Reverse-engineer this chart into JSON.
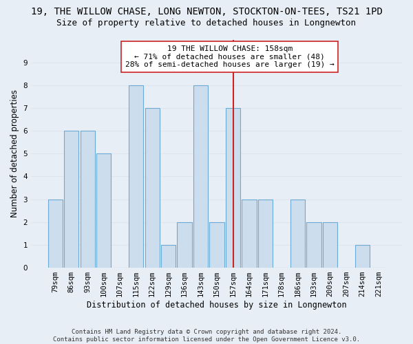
{
  "title": "19, THE WILLOW CHASE, LONG NEWTON, STOCKTON-ON-TEES, TS21 1PD",
  "subtitle": "Size of property relative to detached houses in Longnewton",
  "xlabel": "Distribution of detached houses by size in Longnewton",
  "ylabel": "Number of detached properties",
  "footer_line1": "Contains HM Land Registry data © Crown copyright and database right 2024.",
  "footer_line2": "Contains public sector information licensed under the Open Government Licence v3.0.",
  "categories": [
    "79sqm",
    "86sqm",
    "93sqm",
    "100sqm",
    "107sqm",
    "115sqm",
    "122sqm",
    "129sqm",
    "136sqm",
    "143sqm",
    "150sqm",
    "157sqm",
    "164sqm",
    "171sqm",
    "178sqm",
    "186sqm",
    "193sqm",
    "200sqm",
    "207sqm",
    "214sqm",
    "221sqm"
  ],
  "values": [
    3,
    6,
    6,
    5,
    0,
    8,
    7,
    1,
    2,
    8,
    2,
    7,
    3,
    3,
    0,
    3,
    2,
    2,
    0,
    1,
    0
  ],
  "bar_color": "#ccdded",
  "bar_edge_color": "#6aaad4",
  "ref_line_index": 11,
  "ref_line_color": "#cc2222",
  "annotation_text": "19 THE WILLOW CHASE: 158sqm\n← 71% of detached houses are smaller (48)\n28% of semi-detached houses are larger (19) →",
  "annotation_box_facecolor": "#ffffff",
  "annotation_box_edgecolor": "#cc2222",
  "ylim": [
    0,
    10
  ],
  "yticks": [
    0,
    1,
    2,
    3,
    4,
    5,
    6,
    7,
    8,
    9,
    10
  ],
  "background_color": "#e8eef5",
  "grid_color": "#dde6ef",
  "title_fontsize": 10,
  "subtitle_fontsize": 9,
  "axis_label_fontsize": 8.5,
  "tick_fontsize": 7.5,
  "annotation_fontsize": 8,
  "footer_fontsize": 6.5
}
